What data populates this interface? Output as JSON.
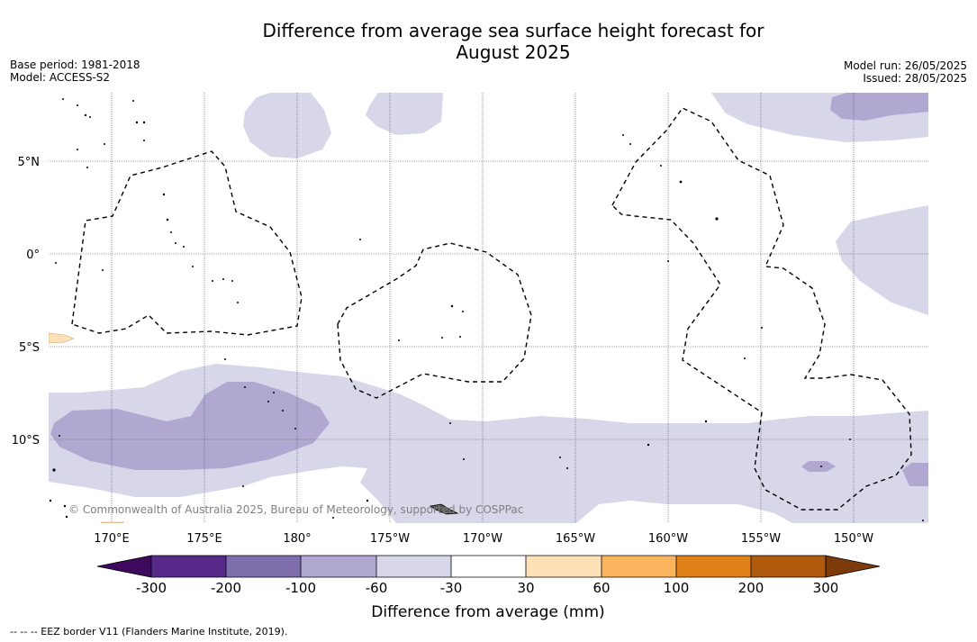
{
  "header": {
    "title_line1": "Difference from average sea surface height forecast for",
    "title_line2": "August 2025",
    "base_period": "Base period: 1981-2018",
    "model": "Model: ACCESS-S2",
    "model_run": "Model run: 26/05/2025",
    "issued": "Issued: 28/05/2025"
  },
  "map": {
    "lat_labels": [
      "5°N",
      "0°",
      "5°S",
      "10°S"
    ],
    "lon_labels": [
      "170°E",
      "175°E",
      "180°",
      "175°W",
      "170°W",
      "165°W",
      "160°W",
      "155°W",
      "150°W"
    ],
    "copyright": "© Commonwealth of Australia 2025, Bureau of Meteorology, supported by COSPPac"
  },
  "legend": {
    "tick_labels": [
      "-300",
      "-200",
      "-100",
      "-60",
      "-30",
      "30",
      "60",
      "100",
      "200",
      "300"
    ],
    "colors": [
      "#3f0a5e",
      "#572a8a",
      "#7e6fac",
      "#b0a8d1",
      "#d7d7e9",
      "#ffffff",
      "#fde0b6",
      "#fbb45e",
      "#e1811a",
      "#b05a0d",
      "#7d3a0b"
    ],
    "title": "Difference from average (mm)"
  },
  "footer": {
    "eez_note": "--  --  -- EEZ border V11 (Flanders Marine Institute, 2019)."
  }
}
